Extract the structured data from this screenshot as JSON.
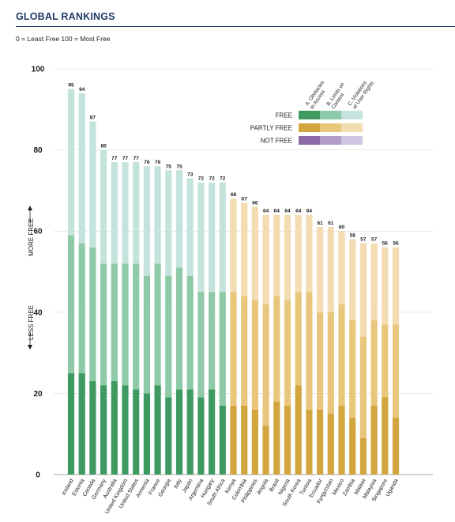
{
  "page": {
    "title": "GLOBAL RANKINGS",
    "scale_note": "0 = Least Free   100 = Most Free"
  },
  "colors": {
    "free_a": "#3f9a62",
    "free_b": "#8fcaa8",
    "free_c": "#c4e3dc",
    "partly_a": "#d2a53e",
    "partly_b": "#e8c77c",
    "partly_c": "#f3dcb2",
    "notfree_a": "#8e6aa8",
    "notfree_b": "#b49cc9",
    "notfree_c": "#d1c7e2",
    "axis": "#1a1a1a"
  },
  "chart_data": {
    "type": "bar",
    "stacked": true,
    "ylim": [
      0,
      100
    ],
    "yticks": [
      0,
      20,
      40,
      60,
      80,
      100
    ],
    "y_direction_label_up": "MORE FREE",
    "y_direction_label_down": "LESS FREE",
    "legend": {
      "columns": [
        "A. Obstacles to Access",
        "B. Limits on Content",
        "C. Violations of User Rights"
      ],
      "rows": [
        "FREE",
        "PARTLY FREE",
        "NOT FREE"
      ]
    },
    "categories": [
      "Iceland",
      "Estonia",
      "Canada",
      "Germany",
      "Australia",
      "United Kingdom",
      "United States",
      "Armenia",
      "France",
      "Georgia",
      "Italy",
      "Japan",
      "Argentina",
      "Hungary",
      "South Africa",
      "Kenya",
      "Colombia",
      "Philippines",
      "Angola",
      "Brazil",
      "Nigeria",
      "South Korea",
      "Tunisia",
      "Ecuador",
      "Kyrgyzstan",
      "Mexico",
      "Zambia",
      "Malawi",
      "Malaysia",
      "Singapore",
      "Uganda"
    ],
    "status": [
      "free",
      "free",
      "free",
      "free",
      "free",
      "free",
      "free",
      "free",
      "free",
      "free",
      "free",
      "free",
      "free",
      "free",
      "free",
      "partly",
      "partly",
      "partly",
      "partly",
      "partly",
      "partly",
      "partly",
      "partly",
      "partly",
      "partly",
      "partly",
      "partly",
      "partly",
      "partly",
      "partly",
      "partly"
    ],
    "totals": [
      95,
      94,
      87,
      80,
      77,
      77,
      77,
      76,
      76,
      75,
      75,
      73,
      72,
      72,
      72,
      68,
      67,
      66,
      64,
      64,
      64,
      64,
      64,
      61,
      61,
      60,
      58,
      57,
      57,
      56,
      56
    ],
    "series": [
      {
        "name": "A. Obstacles to Access",
        "values": [
          25,
          25,
          23,
          22,
          23,
          22,
          21,
          20,
          22,
          19,
          21,
          21,
          19,
          21,
          17,
          17,
          17,
          16,
          12,
          18,
          17,
          22,
          16,
          16,
          15,
          17,
          14,
          9,
          17,
          19,
          14
        ]
      },
      {
        "name": "B. Limits on Content",
        "values": [
          34,
          32,
          33,
          30,
          29,
          30,
          31,
          29,
          30,
          30,
          30,
          28,
          26,
          24,
          28,
          28,
          27,
          27,
          30,
          26,
          26,
          23,
          29,
          24,
          25,
          25,
          24,
          25,
          21,
          18,
          23
        ]
      },
      {
        "name": "C. Violations of User Rights",
        "values": [
          36,
          37,
          31,
          28,
          25,
          25,
          25,
          27,
          24,
          26,
          24,
          24,
          27,
          27,
          27,
          23,
          23,
          23,
          22,
          20,
          21,
          19,
          19,
          21,
          21,
          18,
          20,
          23,
          19,
          19,
          19
        ]
      }
    ]
  }
}
